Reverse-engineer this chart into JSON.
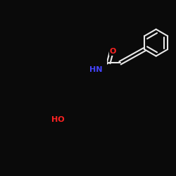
{
  "bg_color": "#0a0a0a",
  "bond_color": "#e8e8e8",
  "N_color": "#4444ff",
  "O_color": "#ff2222",
  "H_color": "#e8e8e8",
  "label_N": "HN",
  "label_O": "O",
  "label_OH": "HO",
  "figsize": [
    2.5,
    2.5
  ],
  "dpi": 100,
  "line_width": 1.5
}
